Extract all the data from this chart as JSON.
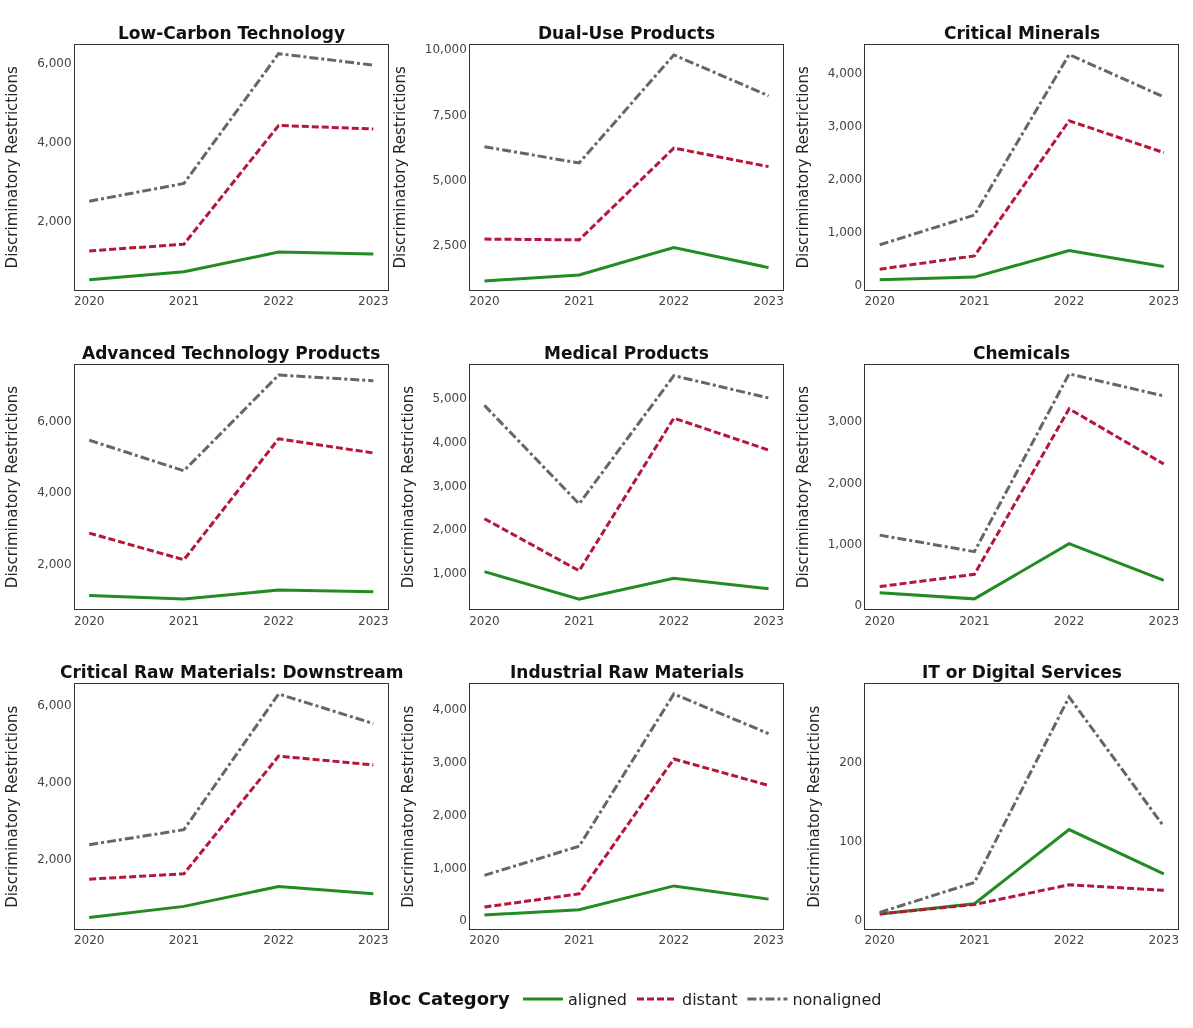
{
  "chart_data": [
    {
      "type": "line",
      "title": "Low-Carbon Technology",
      "ylabel": "Discriminatory Restrictions",
      "categories": [
        "2020",
        "2021",
        "2022",
        "2023"
      ],
      "ylim": [
        250,
        6450
      ],
      "yticks": [
        {
          "value": 2000,
          "label": "2,000"
        },
        {
          "value": 4000,
          "label": "4,000"
        },
        {
          "value": 6000,
          "label": "6,000"
        }
      ],
      "legend": "bottom",
      "legend_title": "Bloc Category",
      "series": [
        {
          "name": "aligned",
          "color": "#228b22",
          "line_style": "solid",
          "values": [
            500,
            700,
            1200,
            1150
          ]
        },
        {
          "name": "distant",
          "color": "#b5173a",
          "line_style": "dashed",
          "values": [
            1230,
            1400,
            4410,
            4320
          ]
        },
        {
          "name": "nonaligned",
          "color": "#666666",
          "line_style": "dashdot",
          "values": [
            2490,
            2940,
            6230,
            5940
          ]
        }
      ]
    },
    {
      "type": "line",
      "title": "Dual-Use Products",
      "ylabel": "Discriminatory Restrictions",
      "categories": [
        "2020",
        "2021",
        "2022",
        "2023"
      ],
      "ylim": [
        800,
        10150
      ],
      "yticks": [
        {
          "value": 2500,
          "label": "2,500"
        },
        {
          "value": 5000,
          "label": "5,000"
        },
        {
          "value": 7500,
          "label": "7,500"
        },
        {
          "value": 10000,
          "label": "10,000"
        }
      ],
      "series": [
        {
          "color": "#228b22",
          "line_style": "solid",
          "values": [
            1130,
            1360,
            2410,
            1640
          ]
        },
        {
          "color": "#b5173a",
          "line_style": "dashed",
          "values": [
            2730,
            2700,
            6210,
            5500
          ]
        },
        {
          "color": "#666666",
          "line_style": "dashdot",
          "values": [
            6260,
            5640,
            9770,
            8210
          ]
        }
      ]
    },
    {
      "type": "line",
      "title": "Critical Minerals",
      "ylabel": "Discriminatory Restrictions",
      "categories": [
        "2020",
        "2021",
        "2022",
        "2023"
      ],
      "ylim": [
        -85,
        4530
      ],
      "yticks": [
        0,
        {
          "value": 1000,
          "label": "1,000"
        },
        {
          "value": 2000,
          "label": "2,000"
        },
        {
          "value": 3000,
          "label": "3,000"
        },
        {
          "value": 4000,
          "label": "4,000"
        }
      ],
      "series": [
        {
          "color": "#228b22",
          "line_style": "solid",
          "values": [
            100,
            150,
            650,
            350
          ]
        },
        {
          "color": "#b5173a",
          "line_style": "dashed",
          "values": [
            300,
            550,
            3100,
            2500
          ]
        },
        {
          "color": "#666666",
          "line_style": "dashdot",
          "values": [
            760,
            1320,
            4350,
            3550
          ]
        }
      ]
    },
    {
      "type": "line",
      "title": "Advanced Technology Products",
      "ylabel": "Discriminatory Restrictions",
      "categories": [
        "2020",
        "2021",
        "2022",
        "2023"
      ],
      "ylim": [
        710,
        7580
      ],
      "yticks": [
        {
          "value": 2000,
          "label": "2,000"
        },
        {
          "value": 4000,
          "label": "4,000"
        },
        {
          "value": 6000,
          "label": "6,000"
        }
      ],
      "series": [
        {
          "color": "#228b22",
          "line_style": "solid",
          "values": [
            1100,
            1000,
            1250,
            1200
          ]
        },
        {
          "color": "#b5173a",
          "line_style": "dashed",
          "values": [
            2850,
            2100,
            5500,
            5100
          ]
        },
        {
          "color": "#666666",
          "line_style": "dashdot",
          "values": [
            5460,
            4600,
            7290,
            7130
          ]
        }
      ]
    },
    {
      "type": "line",
      "title": "Medical Products",
      "ylabel": "Discriminatory Restrictions",
      "categories": [
        "2020",
        "2021",
        "2022",
        "2023"
      ],
      "ylim": [
        170,
        5760
      ],
      "yticks": [
        {
          "value": 1000,
          "label": "1,000"
        },
        {
          "value": 2000,
          "label": "2,000"
        },
        {
          "value": 3000,
          "label": "3,000"
        },
        {
          "value": 4000,
          "label": "4,000"
        },
        {
          "value": 5000,
          "label": "5,000"
        }
      ],
      "series": [
        {
          "color": "#228b22",
          "line_style": "solid",
          "values": [
            1030,
            400,
            880,
            640
          ]
        },
        {
          "color": "#b5173a",
          "line_style": "dashed",
          "values": [
            2240,
            1050,
            4540,
            3810
          ]
        },
        {
          "color": "#666666",
          "line_style": "dashdot",
          "values": [
            4830,
            2580,
            5510,
            5000
          ]
        }
      ]
    },
    {
      "type": "line",
      "title": "Chemicals",
      "ylabel": "Discriminatory Restrictions",
      "categories": [
        "2020",
        "2021",
        "2022",
        "2023"
      ],
      "ylim": [
        -70,
        3920
      ],
      "yticks": [
        0,
        {
          "value": 1000,
          "label": "1,000"
        },
        {
          "value": 2000,
          "label": "2,000"
        },
        {
          "value": 3000,
          "label": "3,000"
        }
      ],
      "series": [
        {
          "color": "#228b22",
          "line_style": "solid",
          "values": [
            200,
            100,
            1000,
            400
          ]
        },
        {
          "color": "#b5173a",
          "line_style": "dashed",
          "values": [
            300,
            500,
            3200,
            2300
          ]
        },
        {
          "color": "#666666",
          "line_style": "dashdot",
          "values": [
            1140,
            870,
            3770,
            3410
          ]
        }
      ]
    },
    {
      "type": "line",
      "title": "Critical Raw Materials: Downstream",
      "ylabel": "Discriminatory Restrictions",
      "categories": [
        "2020",
        "2021",
        "2022",
        "2023"
      ],
      "ylim": [
        160,
        6540
      ],
      "yticks": [
        {
          "value": 2000,
          "label": "2,000"
        },
        {
          "value": 4000,
          "label": "4,000"
        },
        {
          "value": 6000,
          "label": "6,000"
        }
      ],
      "series": [
        {
          "color": "#228b22",
          "line_style": "solid",
          "values": [
            460,
            750,
            1270,
            1080
          ]
        },
        {
          "color": "#b5173a",
          "line_style": "dashed",
          "values": [
            1460,
            1600,
            4670,
            4440
          ]
        },
        {
          "color": "#666666",
          "line_style": "dashdot",
          "values": [
            2360,
            2750,
            6290,
            5520
          ]
        }
      ]
    },
    {
      "type": "line",
      "title": "Industrial Raw Materials",
      "ylabel": "Discriminatory Restrictions",
      "categories": [
        "2020",
        "2021",
        "2022",
        "2023"
      ],
      "ylim": [
        -165,
        4460
      ],
      "yticks": [
        0,
        {
          "value": 1000,
          "label": "1,000"
        },
        {
          "value": 2000,
          "label": "2,000"
        },
        {
          "value": 3000,
          "label": "3,000"
        },
        {
          "value": 4000,
          "label": "4,000"
        }
      ],
      "series": [
        {
          "color": "#228b22",
          "line_style": "solid",
          "values": [
            100,
            200,
            650,
            400
          ]
        },
        {
          "color": "#b5173a",
          "line_style": "dashed",
          "values": [
            250,
            500,
            3050,
            2550
          ]
        },
        {
          "color": "#666666",
          "line_style": "dashdot",
          "values": [
            850,
            1400,
            4280,
            3530
          ]
        }
      ]
    },
    {
      "type": "line",
      "title": "IT or Digital Services",
      "ylabel": "Discriminatory Restrictions",
      "categories": [
        "2020",
        "2021",
        "2022",
        "2023"
      ],
      "ylim": [
        -12,
        298
      ],
      "yticks": [
        0,
        100,
        200
      ],
      "series": [
        {
          "color": "#228b22",
          "line_style": "solid",
          "values": [
            7,
            20,
            114,
            58
          ]
        },
        {
          "color": "#b5173a",
          "line_style": "dashed",
          "values": [
            7,
            19,
            44,
            37
          ]
        },
        {
          "color": "#666666",
          "line_style": "dashdot",
          "values": [
            9,
            47,
            282,
            118
          ]
        }
      ]
    }
  ]
}
